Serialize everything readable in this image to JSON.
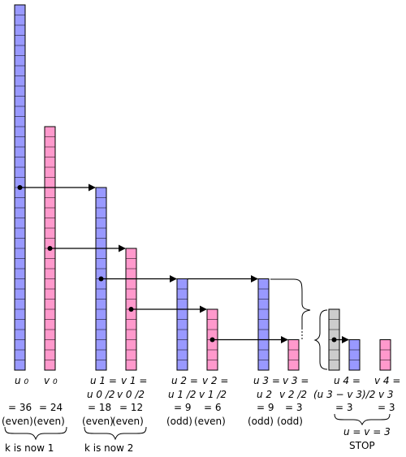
{
  "colors": {
    "u_bar": "#9999ff",
    "v_bar": "#ff99cc",
    "diff_bar": "#cccccc",
    "stroke": "#000000"
  },
  "bars": [
    {
      "name": "u0",
      "value": 36,
      "kind": "u"
    },
    {
      "name": "v0",
      "value": 24,
      "kind": "v"
    },
    {
      "name": "u1",
      "value": 18,
      "kind": "u"
    },
    {
      "name": "v1",
      "value": 12,
      "kind": "v"
    },
    {
      "name": "u2",
      "value": 9,
      "kind": "u"
    },
    {
      "name": "v2",
      "value": 6,
      "kind": "v"
    },
    {
      "name": "u3",
      "value": 9,
      "kind": "u"
    },
    {
      "name": "v3",
      "value": 3,
      "kind": "v"
    },
    {
      "name": "u3-v3",
      "value": 6,
      "kind": "diff"
    },
    {
      "name": "u4",
      "value": 3,
      "kind": "u"
    },
    {
      "name": "v4",
      "value": 3,
      "kind": "v"
    }
  ],
  "labels": {
    "u0": {
      "sym": "u",
      "sub": "0",
      "val": "= 36",
      "par": "(even)"
    },
    "v0": {
      "sym": "v",
      "sub": "0",
      "val": "= 24",
      "par": "(even)"
    },
    "u1": {
      "l1": "u 1 =",
      "l2": "u 0 /2",
      "val": "= 18",
      "par": "(even)"
    },
    "v1": {
      "l1": "v 1 =",
      "l2": "v 0 /2",
      "val": "= 12",
      "par": "(even)"
    },
    "u2": {
      "l1": "u 2 =",
      "l2": "u 1 /2",
      "val": "= 9",
      "par": "(odd)"
    },
    "v2": {
      "l1": "v 2 =",
      "l2": "v 1 /2",
      "val": "= 6",
      "par": "(even)"
    },
    "u3": {
      "l1": "u 3 =",
      "l2": "u 2",
      "val": "= 9",
      "par": "(odd)"
    },
    "v3": {
      "l1": "v 3 =",
      "l2": "v 2 /2",
      "val": "= 3",
      "par": "(odd)"
    },
    "u4": {
      "l1": "u 4 =",
      "l2": "(u 3 − v 3)/2",
      "val": "= 3"
    },
    "v4": {
      "l1": "v 4 =",
      "l2": "v 3",
      "val": "= 3"
    }
  },
  "notes": {
    "k1": "k is now 1",
    "k2": "k is now 2",
    "equal": "u = v = 3",
    "stop": "STOP"
  }
}
